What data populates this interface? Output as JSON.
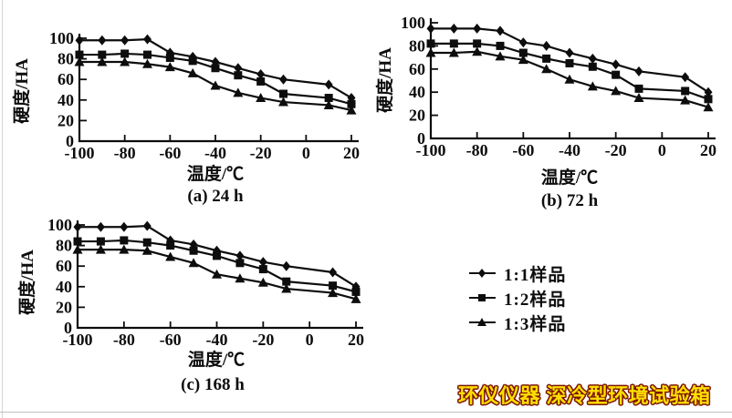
{
  "page": {
    "background": "#ffffff",
    "line_color": "#0d0d0d",
    "frame_line_color": "#c9c9c9"
  },
  "legend": {
    "items": [
      {
        "label": "1:1样品",
        "marker": "diamond"
      },
      {
        "label": "1:2样品",
        "marker": "square"
      },
      {
        "label": "1:3样品",
        "marker": "triangle"
      }
    ]
  },
  "watermark": {
    "text": "环仪仪器 深冷型环境试验箱",
    "fill": "#FFDF00",
    "outline": "#7B1400"
  },
  "chart_data": [
    {
      "type": "line",
      "caption": "(a) 24 h",
      "xlabel": "温度/℃",
      "ylabel": "硬度/HA",
      "xlim": [
        -100,
        20
      ],
      "ylim": [
        0,
        100
      ],
      "xticks": [
        -100,
        -80,
        -60,
        -40,
        -20,
        0,
        20
      ],
      "yticks": [
        0,
        20,
        40,
        60,
        80,
        100
      ],
      "x": [
        -100,
        -90,
        -80,
        -70,
        -60,
        -50,
        -40,
        -30,
        -20,
        -10,
        10,
        20
      ],
      "series": [
        {
          "name": "1:1样品",
          "marker": "diamond",
          "values": [
            98,
            98,
            98,
            99,
            86,
            82,
            77,
            71,
            65,
            60,
            55,
            42
          ]
        },
        {
          "name": "1:2样品",
          "marker": "square",
          "values": [
            84,
            84,
            85,
            84,
            81,
            78,
            71,
            64,
            58,
            46,
            42,
            36
          ]
        },
        {
          "name": "1:3样品",
          "marker": "triangle",
          "values": [
            77,
            77,
            77,
            75,
            72,
            66,
            54,
            47,
            42,
            38,
            35,
            30
          ]
        }
      ]
    },
    {
      "type": "line",
      "caption": "(b) 72 h",
      "xlabel": "温度/℃",
      "ylabel": "硬度/HA",
      "xlim": [
        -100,
        20
      ],
      "ylim": [
        0,
        100
      ],
      "xticks": [
        -100,
        -80,
        -60,
        -40,
        -20,
        0,
        20
      ],
      "yticks": [
        0,
        20,
        40,
        60,
        80,
        100
      ],
      "x": [
        -100,
        -90,
        -80,
        -70,
        -60,
        -50,
        -40,
        -30,
        -20,
        -10,
        10,
        20
      ],
      "series": [
        {
          "name": "1:1样品",
          "marker": "diamond",
          "values": [
            95,
            95,
            95,
            93,
            83,
            80,
            74,
            69,
            64,
            58,
            53,
            40
          ]
        },
        {
          "name": "1:2样品",
          "marker": "square",
          "values": [
            82,
            82,
            82,
            80,
            74,
            69,
            65,
            62,
            55,
            43,
            41,
            34
          ]
        },
        {
          "name": "1:3样品",
          "marker": "triangle",
          "values": [
            74,
            74,
            75,
            71,
            68,
            60,
            51,
            45,
            41,
            35,
            33,
            27
          ]
        }
      ]
    },
    {
      "type": "line",
      "caption": "(c) 168 h",
      "xlabel": "温度/℃",
      "ylabel": "硬度/HA",
      "xlim": [
        -100,
        20
      ],
      "ylim": [
        0,
        100
      ],
      "xticks": [
        -100,
        -80,
        -60,
        -40,
        -20,
        0,
        20
      ],
      "yticks": [
        0,
        20,
        40,
        60,
        80,
        100
      ],
      "x": [
        -100,
        -90,
        -80,
        -70,
        -60,
        -50,
        -40,
        -30,
        -20,
        -10,
        10,
        20
      ],
      "series": [
        {
          "name": "1:1样品",
          "marker": "diamond",
          "values": [
            98,
            98,
            98,
            99,
            85,
            81,
            75,
            70,
            64,
            60,
            54,
            40
          ]
        },
        {
          "name": "1:2样品",
          "marker": "square",
          "values": [
            84,
            84,
            85,
            83,
            80,
            75,
            70,
            63,
            57,
            45,
            41,
            35
          ]
        },
        {
          "name": "1:3样品",
          "marker": "triangle",
          "values": [
            76,
            76,
            76,
            75,
            69,
            63,
            52,
            48,
            44,
            38,
            34,
            28
          ]
        }
      ]
    }
  ]
}
